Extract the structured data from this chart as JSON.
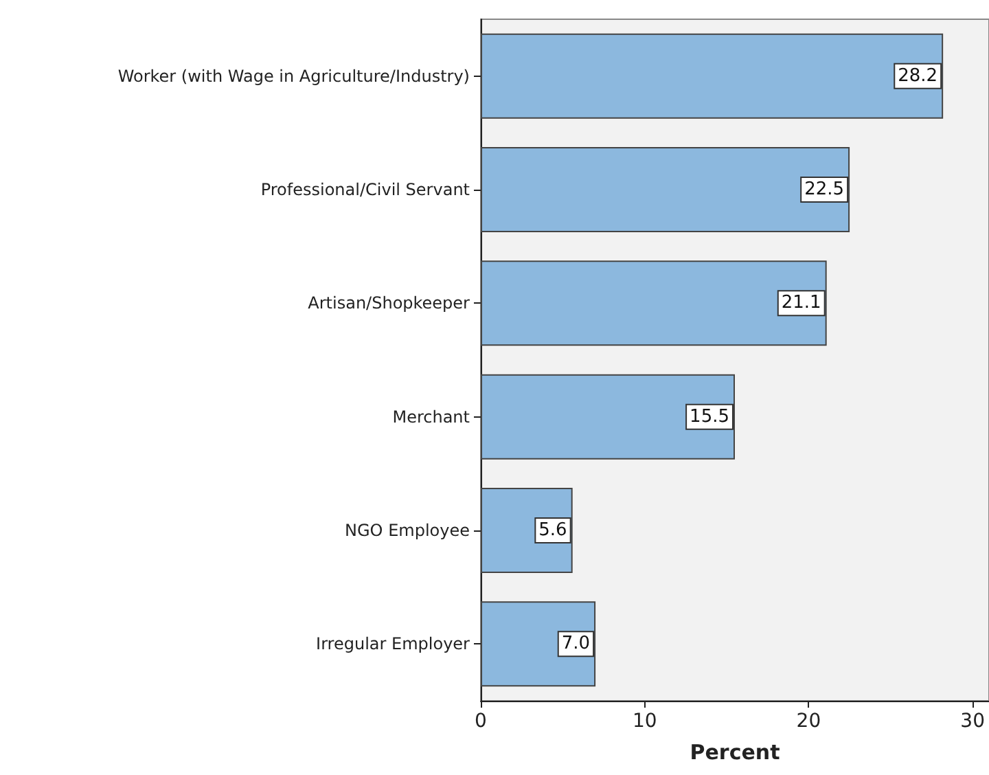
{
  "chart_data": {
    "type": "bar",
    "orientation": "horizontal",
    "xlabel": "Percent",
    "categories": [
      "Worker (with Wage in Agriculture/Industry)",
      "Professional/Civil Servant",
      "Artisan/Shopkeeper",
      "Merchant",
      "NGO Employee",
      "Irregular Employer"
    ],
    "values": [
      28.2,
      22.5,
      21.1,
      15.5,
      5.6,
      7.0
    ],
    "value_labels": [
      "28.2",
      "22.5",
      "21.1",
      "15.5",
      "5.6",
      "7.0"
    ],
    "color": "#8cb8de",
    "xlim": [
      0,
      31
    ],
    "xticks": [
      0,
      10,
      20,
      30
    ]
  }
}
